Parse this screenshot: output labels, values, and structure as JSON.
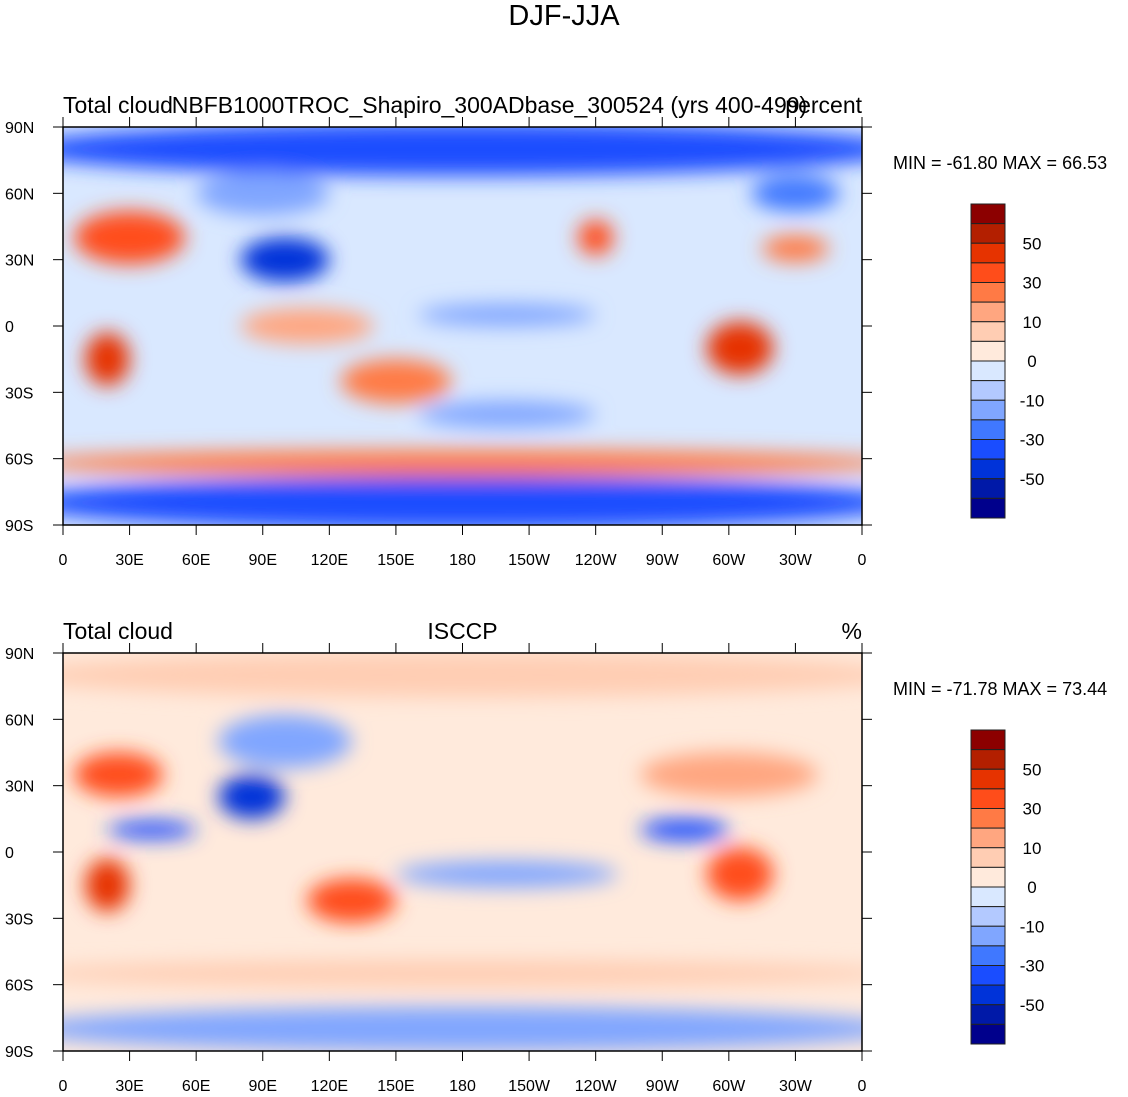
{
  "figure": {
    "title": "DJF-JJA"
  },
  "chart_data": [
    {
      "type": "heatmap",
      "subtype": "filled-contour map",
      "left_title": "Total cloud",
      "center_title": "NBFB1000TROC_Shapiro_300ADbase_300524 (yrs 400-499)",
      "right_title": "percent",
      "min_max": "MIN = -61.80 MAX =  66.53",
      "min": -61.8,
      "max": 66.53,
      "x_ticks": [
        "0",
        "30E",
        "60E",
        "90E",
        "120E",
        "150E",
        "180",
        "150W",
        "120W",
        "90W",
        "60W",
        "30W",
        "0"
      ],
      "y_ticks": [
        "90N",
        "60N",
        "30N",
        "0",
        "30S",
        "60S",
        "90S"
      ],
      "colorbar_labels": [
        "50",
        "30",
        "10",
        "0",
        "-10",
        "-30",
        "-50"
      ]
    },
    {
      "type": "heatmap",
      "subtype": "filled-contour map",
      "left_title": "Total cloud",
      "center_title": "ISCCP",
      "right_title": "%",
      "min_max": "MIN = -71.78 MAX =  73.44",
      "min": -71.78,
      "max": 73.44,
      "x_ticks": [
        "0",
        "30E",
        "60E",
        "90E",
        "120E",
        "150E",
        "180",
        "150W",
        "120W",
        "90W",
        "60W",
        "30W",
        "0"
      ],
      "y_ticks": [
        "90N",
        "60N",
        "30N",
        "0",
        "30S",
        "60S",
        "90S"
      ],
      "colorbar_labels": [
        "50",
        "30",
        "10",
        "0",
        "-10",
        "-30",
        "-50"
      ]
    }
  ],
  "contour_levels": [
    -60,
    -50,
    -40,
    -30,
    -20,
    -10,
    -5,
    0,
    5,
    10,
    20,
    30,
    40,
    50,
    60
  ],
  "colors": [
    "#00008c",
    "#0019a8",
    "#0033d9",
    "#1a4dff",
    "#4078ff",
    "#80a6ff",
    "#b3c9ff",
    "#d9e8ff",
    "#ffeadc",
    "#ffcdb3",
    "#ffa680",
    "#ff7a45",
    "#ff4d1a",
    "#e63300",
    "#b31f00",
    "#8c0000"
  ]
}
